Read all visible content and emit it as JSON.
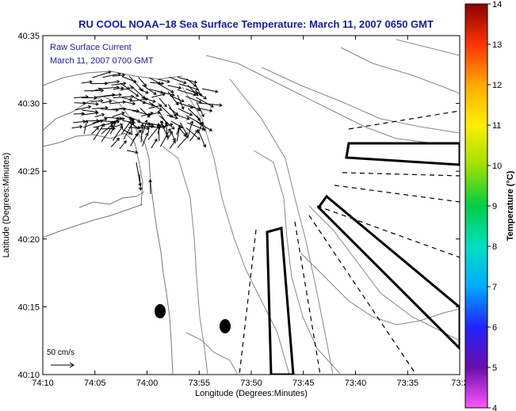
{
  "chart_data": {
    "type": "map",
    "title": "RU COOL  NOAA−18  Sea Surface Temperature:  March 11, 2007 0650 GMT",
    "xlabel": "Longitude (Degrees:Minutes)",
    "ylabel": "Latitude (Degrees:Minutes)",
    "x_ticks": [
      "74:10",
      "74:05",
      "74:00",
      "73:55",
      "73:50",
      "73:45",
      "73:40",
      "73:35",
      "73:3"
    ],
    "y_ticks": [
      "40:35",
      "40:30",
      "40:25",
      "40:20",
      "40:15",
      "40:10"
    ],
    "xlim_minutes_west": [
      4450,
      4410
    ],
    "ylim_minutes_north": [
      2410,
      2435
    ],
    "legend": {
      "line1": "Raw Surface Current",
      "line2": "March 11, 2007 0700 GMT",
      "position": "top-left"
    },
    "scale": {
      "label": "50 cm/s"
    },
    "colorbar": {
      "label": "Temperature (°C)",
      "min": 4,
      "max": 14,
      "ticks": [
        "14",
        "13",
        "12",
        "11",
        "10",
        "9",
        "8",
        "7",
        "6",
        "5",
        "4"
      ],
      "colors": [
        "#ff55ff",
        "#6a0dad",
        "#2222ff",
        "#00aaff",
        "#00e0c0",
        "#00cc44",
        "#a0e000",
        "#ffee00",
        "#ffaa00",
        "#ff3300",
        "#8b0000"
      ]
    },
    "markers": [
      {
        "type": "ellipse",
        "lon": 4438.9,
        "lat": 2414.6
      },
      {
        "type": "ellipse",
        "lon": 4432.2,
        "lat": 2413.5
      }
    ]
  }
}
